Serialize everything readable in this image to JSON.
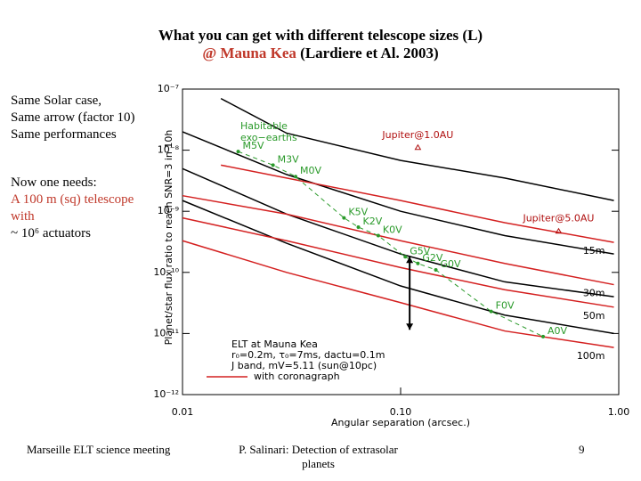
{
  "slide": {
    "title_line1": "What you can get with different telescope sizes (L)",
    "title_place": "@ Mauna Kea",
    "title_ref": "(Lardiere et Al. 2003)",
    "left_text": [
      "Same Solar case,",
      "Same arrow (factor 10)",
      "Same performances"
    ],
    "needs_heading": "Now one needs:",
    "needs_red": [
      "A 100 m (sq) telescope",
      "with"
    ],
    "needs_last": "~ 10⁶ actuators",
    "footer_left": "Marseille ELT science meeting",
    "footer_center": "P. Salinari: Detection of extrasolar planets",
    "page_number": "9"
  },
  "chart_data": {
    "type": "line",
    "xlog": true,
    "ylog": true,
    "x_label": "Angular separation (arcsec.)",
    "y_label": "Planet/star flux ratio to reach SNR=3 in 10h",
    "xlim": [
      0.01,
      1.0
    ],
    "xticks": [
      0.01,
      {
        "value": 0.1,
        "label": "0.10"
      },
      {
        "value": 1.0,
        "label": "1.00"
      }
    ],
    "ylim": [
      1e-12,
      1e-07
    ],
    "yticks": [
      {
        "value": 1e-12,
        "label": "10⁻¹²"
      },
      {
        "value": 1e-11,
        "label": "10⁻¹¹"
      },
      {
        "value": 1e-10,
        "label": "10⁻¹⁰"
      },
      {
        "value": 1e-09,
        "label": "10⁻⁹"
      },
      {
        "value": 1e-08,
        "label": "10⁻⁸"
      },
      {
        "value": 1e-07,
        "label": "10⁻⁷"
      }
    ],
    "series": [
      {
        "color": "#000000",
        "x": [
          0.015,
          0.03,
          0.1,
          0.3,
          0.95
        ],
        "values": [
          7e-08,
          1.9e-08,
          6.8e-09,
          3.5e-09,
          1.5e-09
        ]
      },
      {
        "color": "#000000",
        "x": [
          0.01,
          0.03,
          0.1,
          0.3,
          0.95
        ],
        "values": [
          2e-08,
          4e-09,
          1e-09,
          4e-10,
          2e-10
        ]
      },
      {
        "color": "#000000",
        "x": [
          0.01,
          0.03,
          0.1,
          0.3,
          0.95
        ],
        "values": [
          5e-09,
          9e-10,
          2e-10,
          7e-11,
          4e-11
        ]
      },
      {
        "color": "#000000",
        "x": [
          0.01,
          0.03,
          0.1,
          0.3,
          0.95
        ],
        "values": [
          1.5e-09,
          3e-10,
          6e-11,
          2e-11,
          1e-11
        ]
      },
      {
        "name": "15m",
        "color": "#d42020",
        "x": [
          0.015,
          0.03,
          0.1,
          0.3,
          0.95
        ],
        "values": [
          5.7e-09,
          3.5e-09,
          1.5e-09,
          6.5e-10,
          3.1e-10
        ]
      },
      {
        "name": "30m",
        "color": "#d42020",
        "x": [
          0.01,
          0.03,
          0.1,
          0.3,
          0.95
        ],
        "values": [
          1.8e-09,
          9e-10,
          3.3e-10,
          1.4e-10,
          6.3e-11
        ]
      },
      {
        "name": "50m",
        "color": "#d42020",
        "x": [
          0.01,
          0.03,
          0.1,
          0.3,
          0.95
        ],
        "values": [
          7.8e-10,
          3.3e-10,
          1.2e-10,
          5.2e-11,
          2.7e-11
        ]
      },
      {
        "name": "100m",
        "color": "#d42020",
        "x": [
          0.01,
          0.03,
          0.1,
          0.3,
          0.95
        ],
        "values": [
          3.3e-10,
          1e-10,
          3.2e-11,
          1.1e-11,
          5.9e-12
        ]
      }
    ],
    "stars": {
      "color": "#2a9a2a",
      "labels": [
        "M5V",
        "M3V",
        "M0V",
        "K5V",
        "K2V",
        "K0V",
        "G5V",
        "G2V",
        "G0V",
        "F0V",
        "A0V"
      ],
      "x": [
        0.018,
        0.026,
        0.033,
        0.055,
        0.064,
        0.079,
        0.105,
        0.12,
        0.145,
        0.26,
        0.45
      ],
      "values": [
        9.5e-09,
        5.7e-09,
        3.7e-09,
        7.8e-10,
        5.5e-10,
        4e-10,
        1.8e-10,
        1.4e-10,
        1.1e-10,
        2.3e-11,
        8.9e-12
      ]
    },
    "planets": {
      "color": "#b01010",
      "labels": [
        "Jupiter@1.0AU",
        "Jupiter@5.0AU"
      ],
      "x": [
        0.12,
        0.53
      ],
      "values": [
        1.1e-08,
        4.7e-10
      ]
    },
    "arrow": {
      "x": 0.11,
      "values": [
        1.8e-10,
        1.15e-11
      ]
    },
    "habitable_label": [
      "Habitable",
      "exo−earths"
    ],
    "info_box": [
      "ELT at Mauna Kea",
      "r₀=0.2m, τ₀=7ms, dactu=0.1m",
      "J band, mV=5.11 (sun@10pc)"
    ],
    "legend_entry": "with coronagraph",
    "legend_color": "#d42020"
  }
}
